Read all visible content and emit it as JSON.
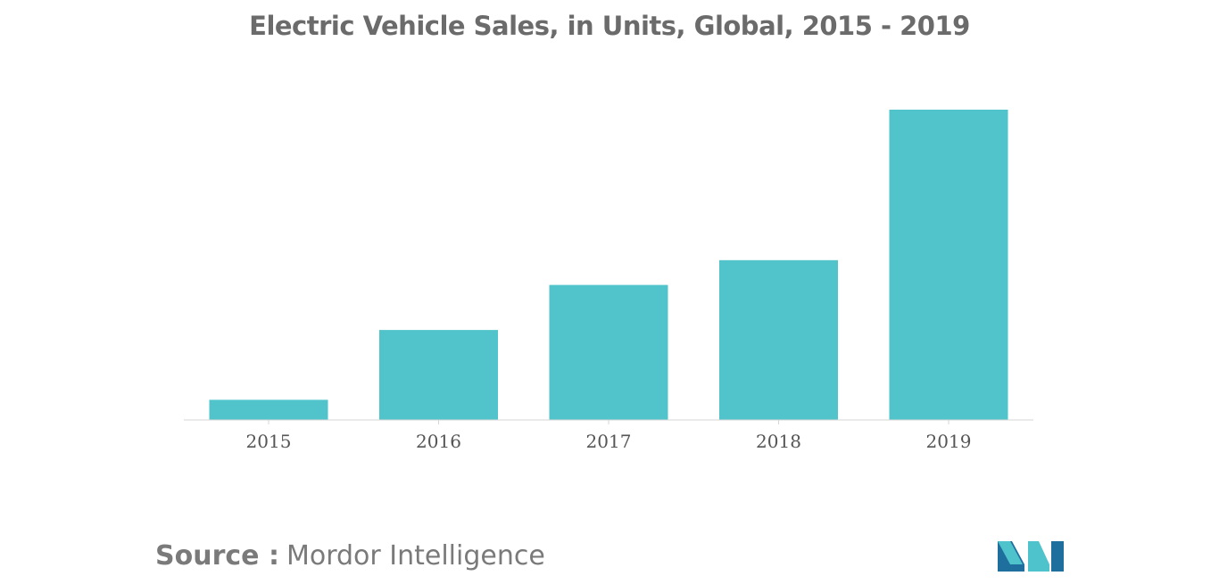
{
  "chart_data": {
    "type": "bar",
    "title": "Electric Vehicle Sales, in Units, Global, 2015 - 2019",
    "categories": [
      "2015",
      "2016",
      "2017",
      "2018",
      "2019"
    ],
    "values": [
      6.5,
      29,
      43.5,
      51.5,
      100
    ],
    "value_scale": "relative (no y-axis shown)",
    "ylim": [
      0,
      100
    ],
    "xlabel": "",
    "ylabel": "",
    "grid": false,
    "legend": "none",
    "bar_color": "#50c4ca"
  },
  "source": {
    "label": "Source :",
    "value": "Mordor Intelligence"
  },
  "logo": {
    "icon": "mordor-intelligence-logo-icon",
    "colors": [
      "#1f6f9e",
      "#4fc3cb"
    ]
  }
}
